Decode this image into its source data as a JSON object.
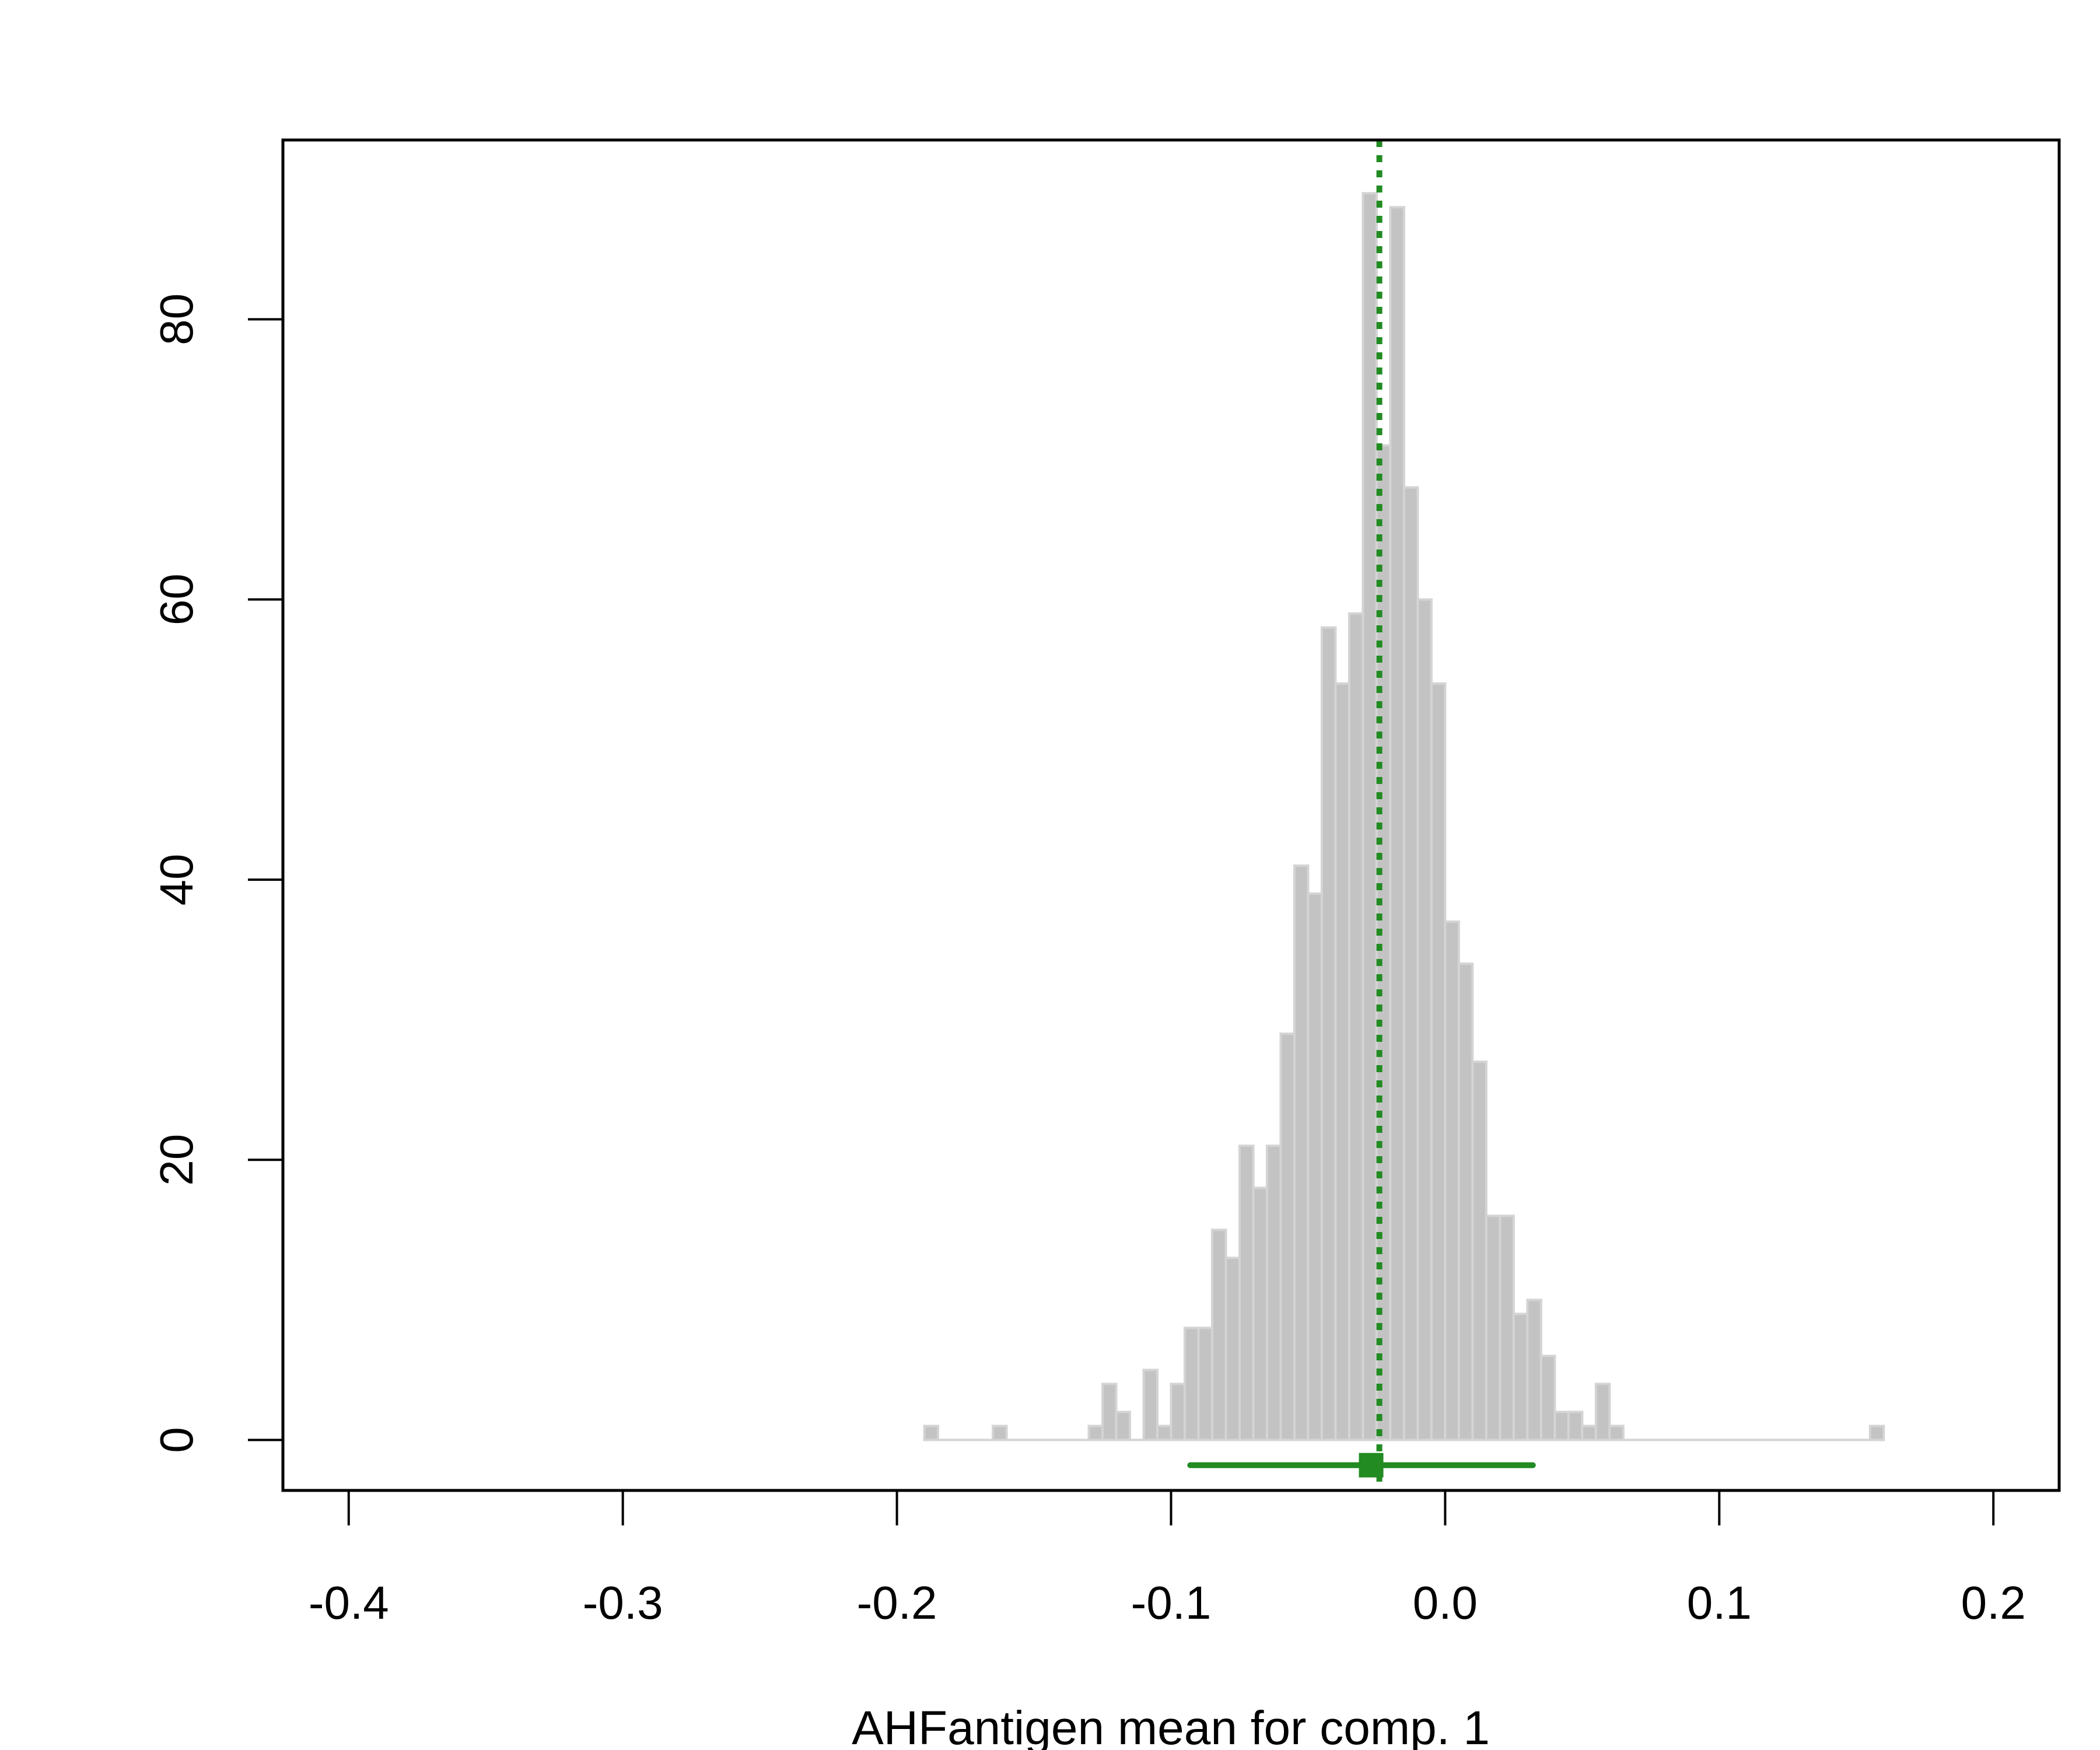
{
  "chart_data": {
    "type": "histogram",
    "title": "",
    "xlabel": "AHFantigen mean for comp. 1",
    "ylabel": "",
    "xlim": [
      -0.424,
      0.224
    ],
    "ylim": [
      -3.6,
      92.8
    ],
    "x_ticks": [
      {
        "value": -0.4,
        "label": "-0.4"
      },
      {
        "value": -0.3,
        "label": "-0.3"
      },
      {
        "value": -0.2,
        "label": "-0.2"
      },
      {
        "value": -0.1,
        "label": "-0.1"
      },
      {
        "value": 0.0,
        "label": "0.0"
      },
      {
        "value": 0.1,
        "label": "0.1"
      },
      {
        "value": 0.2,
        "label": "0.2"
      }
    ],
    "y_ticks": [
      {
        "value": 0,
        "label": "0"
      },
      {
        "value": 20,
        "label": "20"
      },
      {
        "value": 40,
        "label": "40"
      },
      {
        "value": 60,
        "label": "60"
      },
      {
        "value": 80,
        "label": "80"
      }
    ],
    "bin_start": -0.19,
    "bin_width": 0.005,
    "counts": [
      1,
      0,
      0,
      0,
      0,
      1,
      0,
      0,
      0,
      0,
      0,
      0,
      1,
      4,
      2,
      0,
      5,
      1,
      4,
      8,
      8,
      15,
      13,
      21,
      18,
      21,
      29,
      41,
      39,
      58,
      54,
      59,
      89,
      71,
      88,
      68,
      60,
      54,
      37,
      34,
      27,
      16,
      16,
      9,
      10,
      6,
      2,
      2,
      1,
      4,
      1,
      0,
      0,
      0,
      0,
      0,
      0,
      0,
      0,
      0,
      0,
      0,
      0,
      0,
      0,
      0,
      0,
      0,
      0,
      1
    ],
    "bar_fill": "#c3c3c3",
    "bar_edge": "#d4d4d4",
    "mean_line": {
      "x": -0.024,
      "color": "#228b22",
      "style": "dotted"
    },
    "interval": {
      "lower": -0.093,
      "upper": 0.032,
      "point": -0.027,
      "y": -1.8,
      "color": "#228b22"
    },
    "grid": false,
    "legend": "none"
  }
}
